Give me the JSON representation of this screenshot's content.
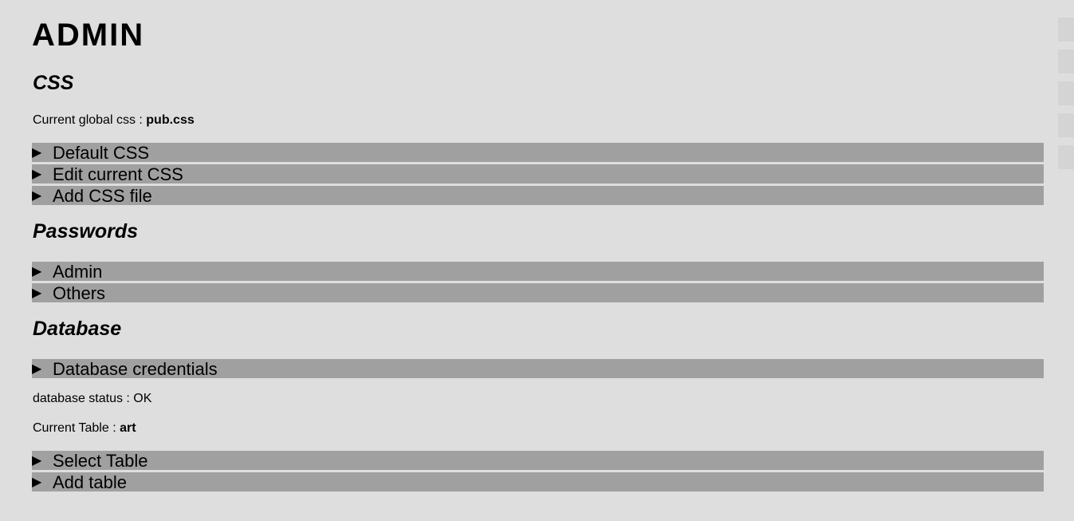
{
  "page": {
    "title": "ADMIN"
  },
  "css_section": {
    "title": "CSS",
    "current_label": "Current global css : ",
    "current_value": "pub.css",
    "items": [
      {
        "label": "Default CSS"
      },
      {
        "label": "Edit current CSS"
      },
      {
        "label": "Add CSS file"
      }
    ]
  },
  "passwords_section": {
    "title": "Passwords",
    "items": [
      {
        "label": "Admin"
      },
      {
        "label": "Others"
      }
    ]
  },
  "database_section": {
    "title": "Database",
    "items": [
      {
        "label": "Database credentials"
      }
    ],
    "status_text": "database status : OK",
    "table_label": "Current Table : ",
    "table_value": "art",
    "table_items": [
      {
        "label": "Select Table"
      },
      {
        "label": "Add table"
      }
    ]
  },
  "icons": {
    "expand": "▶"
  },
  "colors": {
    "background": "#dedede",
    "bar": "#a0a0a0"
  }
}
